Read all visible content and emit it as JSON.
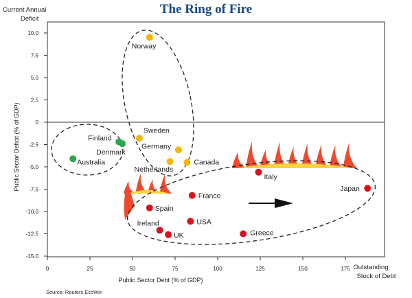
{
  "chart_data": {
    "type": "scatter",
    "title": "The Ring of Fire",
    "xlabel": "Public Sector Debt (% of GDP)",
    "ylabel": "Public Sector Deficit (% of GDP)",
    "x_axis_end_label": "Outstanding Stock of Debt",
    "y_axis_top_label": "Current Annual Deficit",
    "source": "Source: Reuters EcoWin",
    "xlim": [
      0,
      198
    ],
    "ylim": [
      -15,
      11.2
    ],
    "x_ticks": [
      "0",
      "25",
      "50",
      "75",
      "100",
      "125",
      "150",
      "175"
    ],
    "x_tick_values": [
      0,
      25,
      50,
      75,
      100,
      125,
      150,
      175
    ],
    "y_ticks": [
      "10.0",
      "7.5",
      "5.0",
      "2.5",
      "0",
      "-2.5",
      "-5.0",
      "-7.5",
      "-10.0",
      "-12.5",
      "-15.0"
    ],
    "y_tick_values": [
      10,
      7.5,
      5,
      2.5,
      0,
      -2.5,
      -5,
      -7.5,
      -10,
      -12.5,
      -15
    ],
    "grid": false,
    "colors": {
      "green": "#2aa84a",
      "yellow": "#f7b500",
      "red": "#d7141d",
      "flame_red": "#ef4a2f",
      "flame_yellow": "#ffd23f"
    },
    "points": [
      {
        "name": "Norway",
        "x": 60,
        "y": 9.5,
        "group": "yellow"
      },
      {
        "name": "Sweden",
        "x": 54,
        "y": -1.8,
        "group": "yellow"
      },
      {
        "name": "Germany",
        "x": 77,
        "y": -3.1,
        "group": "yellow"
      },
      {
        "name": "Netherlands",
        "x": 72,
        "y": -4.4,
        "group": "yellow"
      },
      {
        "name": "Canada",
        "x": 82,
        "y": -4.5,
        "group": "yellow"
      },
      {
        "name": "Finland",
        "x": 42,
        "y": -2.2,
        "group": "green"
      },
      {
        "name": "Denmark",
        "x": 44,
        "y": -2.4,
        "group": "green"
      },
      {
        "name": "Australia",
        "x": 15,
        "y": -4.1,
        "group": "green"
      },
      {
        "name": "Italy",
        "x": 124,
        "y": -5.6,
        "group": "red"
      },
      {
        "name": "Japan",
        "x": 188,
        "y": -7.4,
        "group": "red"
      },
      {
        "name": "France",
        "x": 85,
        "y": -8.2,
        "group": "red"
      },
      {
        "name": "Spain",
        "x": 60,
        "y": -9.6,
        "group": "red"
      },
      {
        "name": "USA",
        "x": 84,
        "y": -11.1,
        "group": "red"
      },
      {
        "name": "Ireland",
        "x": 66,
        "y": -12.1,
        "group": "red"
      },
      {
        "name": "UK",
        "x": 71,
        "y": -12.6,
        "group": "red"
      },
      {
        "name": "Greece",
        "x": 115,
        "y": -12.5,
        "group": "red"
      }
    ]
  }
}
